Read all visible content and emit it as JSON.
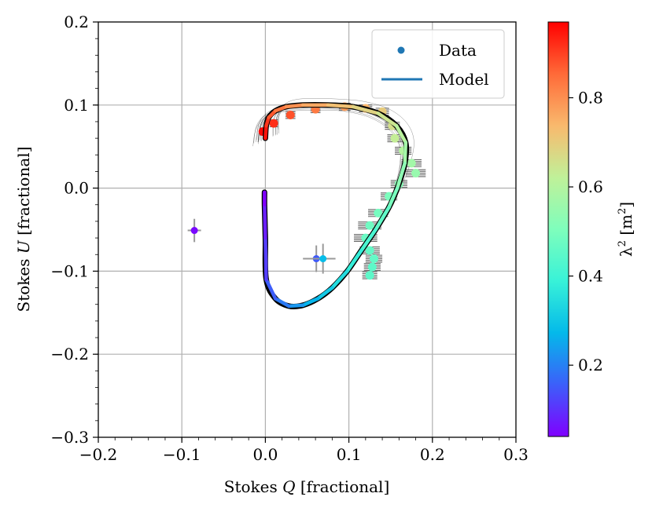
{
  "chart_data": {
    "type": "scatter",
    "xlabel": "Stokes Q [fractional]",
    "ylabel": "Stokes U [fractional]",
    "xlabel_parts": {
      "pre": "Stokes ",
      "var": "Q",
      "post": " [fractional]"
    },
    "ylabel_parts": {
      "pre": "Stokes ",
      "var": "U",
      "post": " [fractional]"
    },
    "xlim": [
      -0.2,
      0.3
    ],
    "ylim": [
      -0.3,
      0.2
    ],
    "xticks": [
      {
        "value": -0.2,
        "label": "−0.2"
      },
      {
        "value": -0.1,
        "label": "−0.1"
      },
      {
        "value": 0.0,
        "label": "0.0"
      },
      {
        "value": 0.1,
        "label": "0.1"
      },
      {
        "value": 0.2,
        "label": "0.2"
      },
      {
        "value": 0.3,
        "label": "0.3"
      }
    ],
    "yticks": [
      {
        "value": -0.3,
        "label": "−0.3"
      },
      {
        "value": -0.2,
        "label": "−0.2"
      },
      {
        "value": -0.1,
        "label": "−0.1"
      },
      {
        "value": 0.0,
        "label": "0.0"
      },
      {
        "value": 0.1,
        "label": "0.1"
      },
      {
        "value": 0.2,
        "label": "0.2"
      }
    ],
    "grid": true,
    "legend": {
      "position": "top-right",
      "entries": [
        {
          "label": "Data",
          "marker": "dot",
          "color": "#1f77b4"
        },
        {
          "label": "Model",
          "marker": "line",
          "color": "#1f77b4"
        }
      ]
    },
    "colorbar": {
      "label": "λ² [m²]",
      "label_parts": {
        "pre": "λ",
        "sup1": "2",
        "mid": " [m",
        "sup2": "2",
        "post": "]"
      },
      "range": [
        0.04,
        0.97
      ],
      "ticks": [
        {
          "value": 0.2,
          "label": "0.2"
        },
        {
          "value": 0.4,
          "label": "0.4"
        },
        {
          "value": 0.6,
          "label": "0.6"
        },
        {
          "value": 0.8,
          "label": "0.8"
        }
      ],
      "colormap": "rainbow",
      "colormap_stops": [
        "#8000ff",
        "#3c5ffa",
        "#04b9ea",
        "#38f2d8",
        "#7ffebc",
        "#c0f199",
        "#f9b96d",
        "#ff6a38",
        "#ff0000"
      ]
    },
    "model_curve": {
      "q": [
        0.0,
        0.001,
        0.004,
        0.012,
        0.025,
        0.045,
        0.075,
        0.105,
        0.135,
        0.157,
        0.168,
        0.167,
        0.158,
        0.148,
        0.132,
        0.115,
        0.098,
        0.08,
        0.063,
        0.045,
        0.028,
        0.012,
        0.001
      ],
      "u": [
        0.06,
        0.075,
        0.085,
        0.093,
        0.098,
        0.1,
        0.1,
        0.098,
        0.09,
        0.075,
        0.055,
        0.03,
        0.0,
        -0.023,
        -0.05,
        -0.075,
        -0.1,
        -0.12,
        -0.133,
        -0.141,
        -0.142,
        -0.133,
        -0.11
      ],
      "tail_q": [
        0.001,
        0.0,
        -0.001,
        -0.001
      ],
      "tail_u": [
        -0.11,
        -0.06,
        -0.02,
        -0.005
      ]
    },
    "data_points": {
      "q": [
        -0.085,
        0.061,
        0.069
      ],
      "u": [
        -0.051,
        -0.085,
        -0.085
      ],
      "q_err": [
        0.008,
        0.016,
        0.015
      ],
      "u_err": [
        0.014,
        0.016,
        0.018
      ],
      "lambda2": [
        0.05,
        0.15,
        0.28
      ]
    },
    "data_band": {
      "q": [
        -0.003,
        0.01,
        0.03,
        0.06,
        0.095,
        0.12,
        0.14,
        0.152,
        0.155,
        0.165,
        0.175,
        0.18,
        0.16,
        0.148,
        0.135,
        0.125,
        0.12,
        0.125,
        0.13,
        0.128,
        0.125
      ],
      "u": [
        0.068,
        0.078,
        0.088,
        0.095,
        0.098,
        0.096,
        0.092,
        0.075,
        0.06,
        0.045,
        0.03,
        0.018,
        0.005,
        -0.01,
        -0.03,
        -0.045,
        -0.06,
        -0.075,
        -0.085,
        -0.095,
        -0.105
      ],
      "lambda2": [
        0.96,
        0.92,
        0.88,
        0.83,
        0.78,
        0.74,
        0.7,
        0.66,
        0.63,
        0.6,
        0.57,
        0.55,
        0.52,
        0.5,
        0.49,
        0.48,
        0.47,
        0.46,
        0.46,
        0.45,
        0.45
      ],
      "q_err": [
        0.004,
        0.005,
        0.006,
        0.006,
        0.007,
        0.008,
        0.008,
        0.009,
        0.009,
        0.01,
        0.012,
        0.012,
        0.01,
        0.01,
        0.012,
        0.014,
        0.014,
        0.012,
        0.01,
        0.01,
        0.009
      ]
    },
    "posterior_samples": 24
  }
}
